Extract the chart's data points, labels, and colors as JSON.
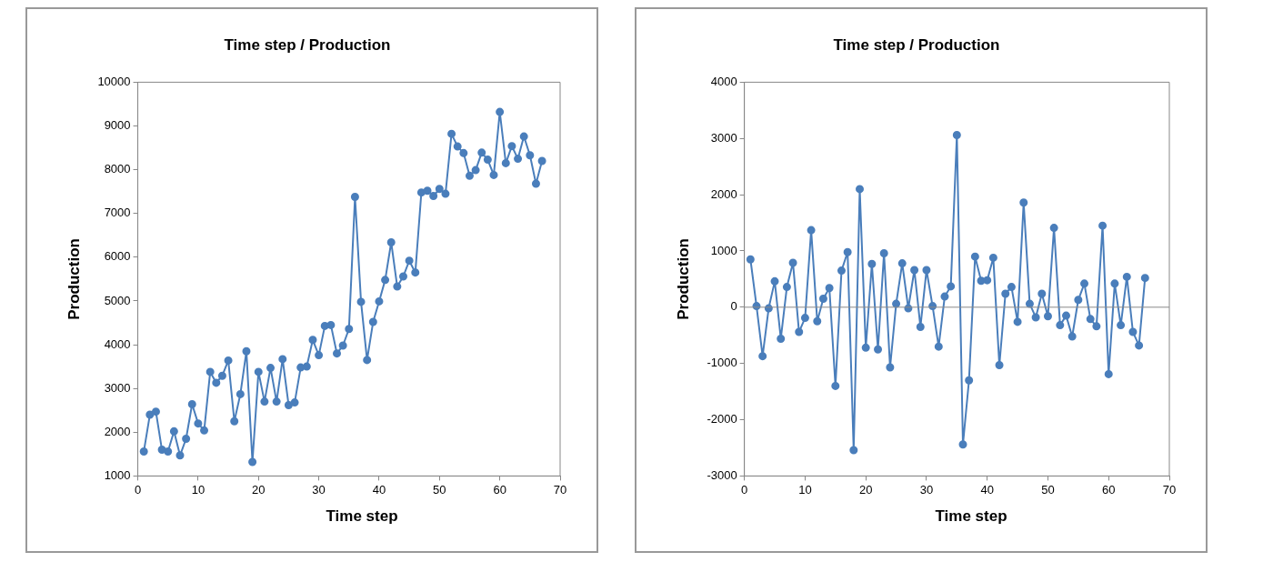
{
  "chart_data": [
    {
      "type": "line",
      "title": "Time step / Production",
      "xlabel": "Time step",
      "ylabel": "Production",
      "color": "#4a7ebb",
      "marker": "circle",
      "grid": false,
      "xlim": [
        0,
        70
      ],
      "xticks": [
        0,
        10,
        20,
        30,
        40,
        50,
        60,
        70
      ],
      "ylim": [
        1000,
        10000
      ],
      "yticks": [
        1000,
        2000,
        3000,
        4000,
        5000,
        6000,
        7000,
        8000,
        9000,
        10000
      ],
      "x": [
        1,
        2,
        3,
        4,
        5,
        6,
        7,
        8,
        9,
        10,
        11,
        12,
        13,
        14,
        15,
        16,
        17,
        18,
        19,
        20,
        21,
        22,
        23,
        24,
        25,
        26,
        27,
        28,
        29,
        30,
        31,
        32,
        33,
        34,
        35,
        36,
        37,
        38,
        39,
        40,
        41,
        42,
        43,
        44,
        45,
        46,
        47,
        48,
        49,
        50,
        51,
        52,
        53,
        54,
        55,
        56,
        57,
        58,
        59,
        60,
        61,
        62,
        63,
        64,
        65,
        66,
        67
      ],
      "values": [
        1560,
        2400,
        2470,
        1600,
        1560,
        2020,
        1470,
        1850,
        2640,
        2200,
        2040,
        3380,
        3130,
        3290,
        3640,
        2250,
        2870,
        3850,
        1320,
        3380,
        2700,
        3470,
        2700,
        3670,
        2620,
        2680,
        3480,
        3500,
        4110,
        3760,
        4430,
        4450,
        3800,
        3980,
        4360,
        7380,
        4980,
        3650,
        4520,
        4990,
        5480,
        6340,
        5330,
        5560,
        5920,
        5650,
        7480,
        7520,
        7400,
        7560,
        7450,
        8820,
        8530,
        8380,
        7860,
        7990,
        8390,
        8230,
        7880,
        9320,
        8150,
        8540,
        8250,
        8760,
        8330,
        7680,
        8200
      ]
    },
    {
      "type": "line",
      "title": "Time step / Production",
      "xlabel": "Time step",
      "ylabel": "Production",
      "color": "#4a7ebb",
      "marker": "circle",
      "grid": false,
      "xlim": [
        0,
        70
      ],
      "xticks": [
        0,
        10,
        20,
        30,
        40,
        50,
        60,
        70
      ],
      "ylim": [
        -3000,
        4000
      ],
      "ref_lines": [
        {
          "axis": "y",
          "value": 0,
          "color": "#888888"
        }
      ],
      "yticks": [
        -3000,
        -2000,
        -1000,
        0,
        1000,
        2000,
        3000,
        4000
      ],
      "x": [
        1,
        2,
        3,
        4,
        5,
        6,
        7,
        8,
        9,
        10,
        11,
        12,
        13,
        14,
        15,
        16,
        17,
        18,
        19,
        20,
        21,
        22,
        23,
        24,
        25,
        26,
        27,
        28,
        29,
        30,
        31,
        32,
        33,
        34,
        35,
        36,
        37,
        38,
        39,
        40,
        41,
        42,
        43,
        44,
        45,
        46,
        47,
        48,
        49,
        50,
        51,
        52,
        53,
        54,
        55,
        56,
        57,
        58,
        59,
        60,
        61,
        62,
        63,
        64,
        65,
        66
      ],
      "values": [
        850,
        20,
        -870,
        -20,
        460,
        -560,
        360,
        790,
        -440,
        -190,
        1370,
        -250,
        150,
        340,
        -1400,
        650,
        980,
        -2540,
        2100,
        -720,
        770,
        -750,
        960,
        -1070,
        60,
        780,
        -20,
        660,
        -350,
        660,
        20,
        -700,
        190,
        370,
        3060,
        -2440,
        -1300,
        900,
        470,
        480,
        880,
        -1030,
        240,
        360,
        -260,
        1860,
        60,
        -180,
        240,
        -160,
        1410,
        -320,
        -150,
        -520,
        130,
        420,
        -210,
        -340,
        1450,
        -1190,
        420,
        -320,
        540,
        -440,
        -680,
        520
      ]
    }
  ]
}
